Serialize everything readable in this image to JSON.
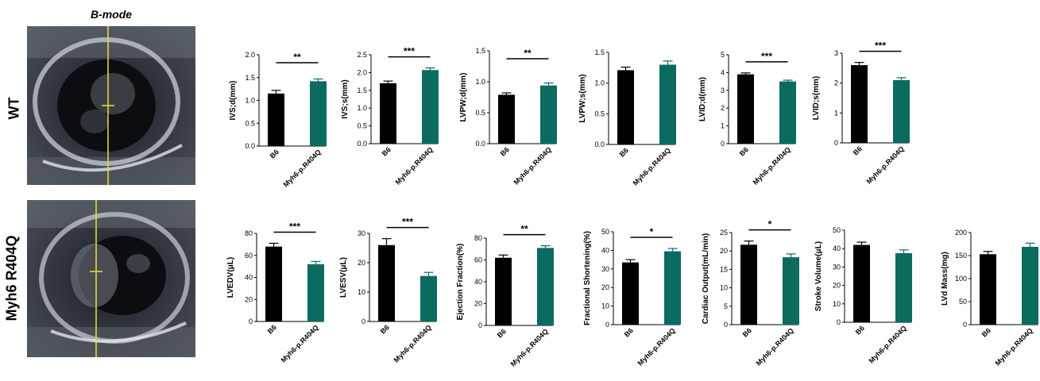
{
  "panel_title": "B-mode",
  "rows": [
    {
      "label": "WT",
      "image": "echo-wt"
    },
    {
      "label": "Myh6 R404Q",
      "image": "echo-r404q"
    }
  ],
  "colors": {
    "B6": "#000000",
    "mutant": "#0b6b5f"
  },
  "chart_data": [
    {
      "type": "bar",
      "ylabel": "IVS;d(mm)",
      "categories": [
        "B6",
        "Myh6-p.R404Q"
      ],
      "values": [
        1.15,
        1.42
      ],
      "errors": [
        0.07,
        0.05
      ],
      "ylim": [
        0.0,
        2.0
      ],
      "ticks": [
        "0.0",
        "0.5",
        "1.0",
        "1.5",
        "2.0"
      ],
      "significance": "**"
    },
    {
      "type": "bar",
      "ylabel": "IVS;s(mm)",
      "categories": [
        "B6",
        "Myh6-p.R404Q"
      ],
      "values": [
        1.7,
        2.07
      ],
      "errors": [
        0.06,
        0.06
      ],
      "ylim": [
        0.0,
        2.5
      ],
      "ticks": [
        "0.0",
        "0.5",
        "1.0",
        "1.5",
        "2.0",
        "2.5"
      ],
      "significance": "***"
    },
    {
      "type": "bar",
      "ylabel": "LVPW;d(mm)",
      "categories": [
        "B6",
        "Myh6-p.R404Q"
      ],
      "values": [
        0.79,
        0.94
      ],
      "errors": [
        0.03,
        0.04
      ],
      "ylim": [
        0.0,
        1.5
      ],
      "ticks": [
        "0.0",
        "0.5",
        "1.0",
        "1.5"
      ],
      "significance": "**"
    },
    {
      "type": "bar",
      "ylabel": "LVPW;s(mm)",
      "categories": [
        "B6",
        "Myh6-p.R404Q"
      ],
      "values": [
        1.21,
        1.3
      ],
      "errors": [
        0.05,
        0.06
      ],
      "ylim": [
        0.0,
        1.5
      ],
      "ticks": [
        "0.0",
        "0.5",
        "1.0",
        "1.5"
      ],
      "significance": ""
    },
    {
      "type": "bar",
      "ylabel": "LVID;d(mm)",
      "categories": [
        "B6",
        "Myh6-p.R404Q"
      ],
      "values": [
        3.9,
        3.5
      ],
      "errors": [
        0.08,
        0.07
      ],
      "ylim": [
        0,
        5
      ],
      "ticks": [
        "0",
        "1",
        "2",
        "3",
        "4",
        "5"
      ],
      "significance": "***"
    },
    {
      "type": "bar",
      "ylabel": "LVID;s(mm)",
      "categories": [
        "B6",
        "Myh6-p.R404Q"
      ],
      "values": [
        2.6,
        2.1
      ],
      "errors": [
        0.09,
        0.08
      ],
      "ylim": [
        0,
        3
      ],
      "ticks": [
        "0",
        "1",
        "2",
        "3"
      ],
      "significance": "***"
    },
    {
      "type": "bar",
      "ylabel": "LVEDV(μL)",
      "categories": [
        "B6",
        "Myh6-p.R404Q"
      ],
      "values": [
        68,
        52
      ],
      "errors": [
        3,
        2.5
      ],
      "ylim": [
        0,
        80
      ],
      "ticks": [
        "0",
        "20",
        "40",
        "60",
        "80"
      ],
      "significance": "***"
    },
    {
      "type": "bar",
      "ylabel": "LVESV(μL)",
      "categories": [
        "B6",
        "Myh6-p.R404Q"
      ],
      "values": [
        26,
        15.5
      ],
      "errors": [
        2.2,
        1.2
      ],
      "ylim": [
        0,
        30
      ],
      "ticks": [
        "0",
        "10",
        "20",
        "30"
      ],
      "significance": "***"
    },
    {
      "type": "bar",
      "ylabel": "Ejection Fraction(%)",
      "categories": [
        "B6",
        "Myh6-p.R404Q"
      ],
      "values": [
        62,
        71
      ],
      "errors": [
        2.5,
        2
      ],
      "ylim": [
        0,
        80
      ],
      "ticks": [
        "0",
        "20",
        "40",
        "60",
        "80"
      ],
      "significance": "**"
    },
    {
      "type": "bar",
      "ylabel": "Fractional Shortening(%)",
      "categories": [
        "B6",
        "Myh6-p.R404Q"
      ],
      "values": [
        33.5,
        39.5
      ],
      "errors": [
        1.5,
        1.5
      ],
      "ylim": [
        0,
        50
      ],
      "ticks": [
        "0",
        "10",
        "20",
        "30",
        "40",
        "50"
      ],
      "significance": "*"
    },
    {
      "type": "bar",
      "ylabel": "Cardiac Output(mL/min)",
      "categories": [
        "B6",
        "Myh6-p.R404Q"
      ],
      "values": [
        21.7,
        18.3
      ],
      "errors": [
        1,
        0.9
      ],
      "ylim": [
        0,
        25
      ],
      "ticks": [
        "0",
        "5",
        "10",
        "15",
        "20",
        "25"
      ],
      "significance": "*"
    },
    {
      "type": "bar",
      "ylabel": "Stroke Volume(μL)",
      "categories": [
        "B6",
        "Myh6-p.R404Q"
      ],
      "values": [
        42,
        37.5
      ],
      "errors": [
        1.5,
        1.8
      ],
      "ylim": [
        0,
        50
      ],
      "ticks": [
        "0",
        "10",
        "20",
        "30",
        "40",
        "50"
      ],
      "significance": ""
    },
    {
      "type": "bar",
      "ylabel": "LVd Mass(mg)",
      "categories": [
        "B6",
        "Myh6-p.R404Q"
      ],
      "values": [
        153,
        169
      ],
      "errors": [
        6,
        8
      ],
      "ylim": [
        0,
        200
      ],
      "ticks": [
        "0",
        "50",
        "100",
        "150",
        "200"
      ],
      "significance": ""
    }
  ]
}
